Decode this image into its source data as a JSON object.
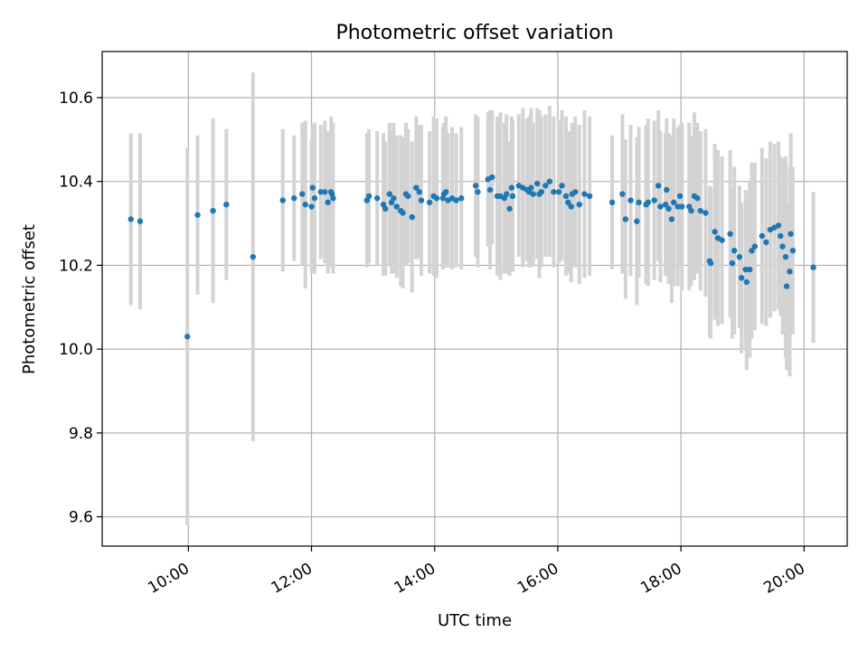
{
  "chart_data": {
    "type": "scatter",
    "title": "Photometric offset variation",
    "xlabel": "UTC time",
    "ylabel": "Photometric offset",
    "x_unit": "hours UTC",
    "xlim": [
      "08:36",
      "20:42"
    ],
    "ylim": [
      9.53,
      10.71
    ],
    "x_ticks": [
      "10:00",
      "12:00",
      "14:00",
      "16:00",
      "18:00",
      "20:00"
    ],
    "y_ticks": [
      "9.6",
      "9.8",
      "10.0",
      "10.2",
      "10.4",
      "10.6"
    ],
    "grid": true,
    "legend": "none",
    "marker_color": "#1f77b4",
    "errorbar_color": "#d3d3d3",
    "series": [
      {
        "x": [
          "09:04",
          "09:13",
          "09:59",
          "10:09",
          "10:24",
          "10:37",
          "11:03",
          "11:32",
          "11:43",
          "11:51",
          "11:54",
          "12:00",
          "12:01",
          "12:03",
          "12:09",
          "12:13",
          "12:16",
          "12:19",
          "12:20",
          "12:21",
          "12:54",
          "12:56",
          "13:04",
          "13:10",
          "13:12",
          "13:16",
          "13:18",
          "13:20",
          "13:23",
          "13:27",
          "13:29",
          "13:32",
          "13:34",
          "13:38",
          "13:42",
          "13:45",
          "13:47",
          "13:55",
          "13:59",
          "14:02",
          "14:08",
          "14:09",
          "14:11",
          "14:13",
          "14:17",
          "14:21",
          "14:26",
          "14:40",
          "14:42",
          "14:52",
          "14:54",
          "14:56",
          "15:01",
          "15:04",
          "15:08",
          "15:10",
          "15:13",
          "15:15",
          "15:16",
          "15:22",
          "15:26",
          "15:30",
          "15:32",
          "15:34",
          "15:36",
          "15:40",
          "15:42",
          "15:44",
          "15:48",
          "15:52",
          "15:56",
          "16:01",
          "16:04",
          "16:08",
          "16:10",
          "16:13",
          "16:14",
          "16:17",
          "16:21",
          "16:26",
          "16:31",
          "16:53",
          "17:03",
          "17:06",
          "17:11",
          "17:17",
          "17:19",
          "17:26",
          "17:28",
          "17:34",
          "17:38",
          "17:40",
          "17:45",
          "17:46",
          "17:48",
          "17:51",
          "17:53",
          "17:57",
          "17:59",
          "18:01",
          "18:08",
          "18:10",
          "18:13",
          "18:16",
          "18:19",
          "18:24",
          "18:28",
          "18:29",
          "18:33",
          "18:36",
          "18:40",
          "18:48",
          "18:50",
          "18:52",
          "18:57",
          "18:59",
          "19:03",
          "19:04",
          "19:07",
          "19:09",
          "19:12",
          "19:19",
          "19:23",
          "19:27",
          "19:31",
          "19:35",
          "19:37",
          "19:39",
          "19:42",
          "19:43",
          "19:46",
          "19:47",
          "19:49",
          "20:09"
        ],
        "y": [
          10.31,
          10.305,
          10.03,
          10.32,
          10.33,
          10.345,
          10.22,
          10.355,
          10.36,
          10.37,
          10.345,
          10.34,
          10.385,
          10.36,
          10.375,
          10.375,
          10.35,
          10.375,
          10.37,
          10.36,
          10.355,
          10.365,
          10.36,
          10.345,
          10.335,
          10.37,
          10.35,
          10.36,
          10.34,
          10.33,
          10.325,
          10.37,
          10.365,
          10.315,
          10.385,
          10.375,
          10.355,
          10.35,
          10.365,
          10.36,
          10.36,
          10.37,
          10.375,
          10.355,
          10.36,
          10.355,
          10.36,
          10.39,
          10.375,
          10.405,
          10.38,
          10.41,
          10.365,
          10.365,
          10.36,
          10.37,
          10.335,
          10.385,
          10.365,
          10.39,
          10.385,
          10.38,
          10.375,
          10.385,
          10.37,
          10.395,
          10.37,
          10.375,
          10.39,
          10.4,
          10.375,
          10.375,
          10.39,
          10.365,
          10.35,
          10.34,
          10.37,
          10.375,
          10.345,
          10.37,
          10.365,
          10.35,
          10.37,
          10.31,
          10.355,
          10.305,
          10.35,
          10.345,
          10.35,
          10.355,
          10.39,
          10.34,
          10.345,
          10.38,
          10.335,
          10.31,
          10.35,
          10.34,
          10.365,
          10.34,
          10.34,
          10.33,
          10.365,
          10.36,
          10.33,
          10.325,
          10.21,
          10.205,
          10.28,
          10.265,
          10.26,
          10.275,
          10.205,
          10.235,
          10.22,
          10.17,
          10.19,
          10.16,
          10.19,
          10.235,
          10.245,
          10.27,
          10.255,
          10.285,
          10.29,
          10.295,
          10.27,
          10.245,
          10.22,
          10.15,
          10.185,
          10.275,
          10.235,
          10.195
        ],
        "err": [
          0.205,
          0.21,
          0.45,
          0.19,
          0.22,
          0.18,
          0.44,
          0.17,
          0.15,
          0.17,
          0.2,
          0.16,
          0.15,
          0.18,
          0.16,
          0.17,
          0.17,
          0.18,
          0.16,
          0.18,
          0.16,
          0.16,
          0.16,
          0.17,
          0.16,
          0.17,
          0.17,
          0.18,
          0.17,
          0.18,
          0.18,
          0.17,
          0.16,
          0.18,
          0.17,
          0.16,
          0.18,
          0.17,
          0.19,
          0.19,
          0.17,
          0.17,
          0.18,
          0.16,
          0.17,
          0.16,
          0.17,
          0.17,
          0.18,
          0.16,
          0.19,
          0.16,
          0.19,
          0.2,
          0.18,
          0.19,
          0.16,
          0.17,
          0.18,
          0.17,
          0.19,
          0.17,
          0.18,
          0.19,
          0.17,
          0.18,
          0.2,
          0.18,
          0.17,
          0.18,
          0.18,
          0.17,
          0.18,
          0.19,
          0.17,
          0.18,
          0.17,
          0.18,
          0.19,
          0.2,
          0.19,
          0.16,
          0.19,
          0.19,
          0.18,
          0.2,
          0.18,
          0.19,
          0.2,
          0.19,
          0.18,
          0.18,
          0.17,
          0.17,
          0.18,
          0.2,
          0.2,
          0.19,
          0.17,
          0.2,
          0.2,
          0.18,
          0.2,
          0.18,
          0.19,
          0.2,
          0.18,
          0.18,
          0.21,
          0.21,
          0.2,
          0.2,
          0.18,
          0.2,
          0.17,
          0.18,
          0.19,
          0.21,
          0.21,
          0.21,
          0.2,
          0.21,
          0.2,
          0.21,
          0.2,
          0.2,
          0.19,
          0.21,
          0.24,
          0.2,
          0.25,
          0.24,
          0.2,
          0.18
        ]
      }
    ]
  }
}
